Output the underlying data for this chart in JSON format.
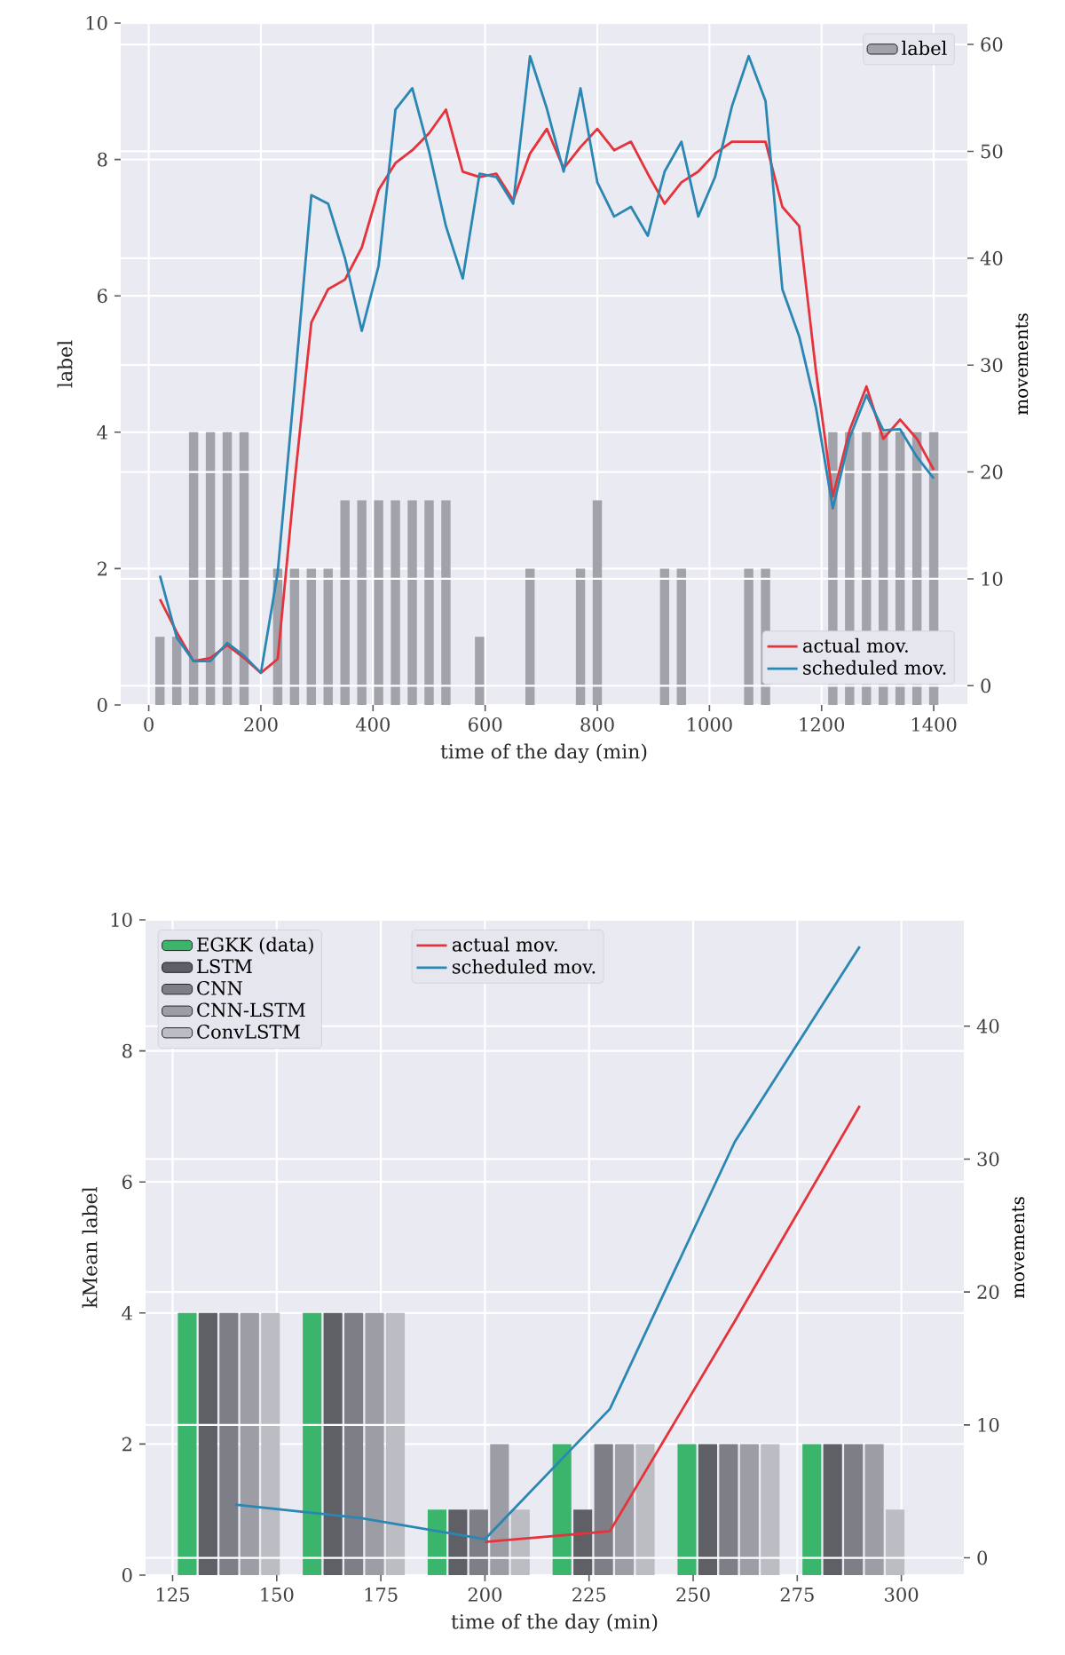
{
  "chart_data": [
    {
      "type": "bar",
      "xlabel": "time of the day (min)",
      "ylabel": "label",
      "y2label": "movements",
      "grid": true,
      "legend": "top right",
      "x": [
        20,
        50,
        80,
        110,
        140,
        170,
        200,
        230,
        260,
        290,
        320,
        350,
        380,
        410,
        440,
        470,
        500,
        530,
        560,
        590,
        620,
        650,
        680,
        710,
        740,
        770,
        800,
        830,
        860,
        890,
        920,
        950,
        980,
        1010,
        1040,
        1070,
        1100,
        1130,
        1160,
        1190,
        1220,
        1250,
        1280,
        1310,
        1340,
        1370,
        1400
      ],
      "xlim": [
        -50,
        1460
      ],
      "xticks": [
        0,
        200,
        400,
        600,
        800,
        1000,
        1200,
        1400
      ],
      "ylim": [
        0,
        10
      ],
      "yticks": [
        0,
        2,
        4,
        6,
        8,
        10
      ],
      "y2lim": [
        -1.8,
        62
      ],
      "y2ticks": [
        0,
        10,
        20,
        30,
        40,
        50,
        60
      ],
      "series": [
        {
          "name": "label",
          "color": "#a2a2ab",
          "values": [
            1,
            1,
            4,
            4,
            4,
            4,
            0,
            2,
            2,
            2,
            2,
            3,
            3,
            3,
            3,
            3,
            3,
            3,
            0,
            1,
            0,
            0,
            2,
            0,
            0,
            2,
            3,
            0,
            0,
            0,
            2,
            2,
            0,
            0,
            0,
            2,
            2,
            0,
            0,
            0,
            4,
            4,
            4,
            4,
            4,
            4,
            4
          ]
        },
        {
          "name": "actual mov.",
          "type": "line",
          "axis": "y2",
          "color": "#e5323b",
          "values": [
            8.1,
            5.0,
            2.3,
            2.6,
            3.8,
            2.6,
            1.2,
            2.5,
            19,
            34,
            37.1,
            38,
            41,
            46.4,
            48.9,
            50.1,
            51.7,
            53.9,
            48.1,
            47.6,
            47.9,
            45.4,
            49.8,
            52.1,
            48.4,
            50.4,
            52.1,
            50.1,
            50.9,
            47.9,
            45.1,
            47.1,
            48.1,
            49.8,
            50.9,
            50.9,
            50.9,
            44.8,
            43.0,
            29.4,
            17.7,
            23.9,
            28.0,
            23.1,
            24.9,
            23.1,
            20.2
          ]
        },
        {
          "name": "scheduled mov.",
          "type": "line",
          "axis": "y2",
          "color": "#2a87b4",
          "values": [
            10.3,
            4.5,
            2.3,
            2.3,
            4.0,
            2.8,
            1.2,
            10.6,
            28,
            45.9,
            45.1,
            40,
            33.2,
            39.3,
            53.9,
            55.9,
            50,
            43,
            38.1,
            47.9,
            47.6,
            45.1,
            58.9,
            54,
            48.1,
            55.9,
            47.1,
            43.9,
            44.8,
            42.1,
            48.1,
            50.9,
            43.9,
            47.6,
            54.2,
            58.9,
            54.7,
            37.1,
            32.7,
            26,
            16.6,
            23.2,
            27.2,
            23.9,
            24.0,
            21.4,
            19.4
          ]
        }
      ]
    },
    {
      "type": "bar",
      "xlabel": "time of the day (min)",
      "ylabel": "kMean label",
      "y2label": "movements",
      "grid": true,
      "legend": "top left",
      "x": [
        140,
        170,
        200,
        230,
        260,
        290
      ],
      "xlim": [
        118.5,
        315
      ],
      "xticks": [
        125,
        150,
        175,
        200,
        225,
        250,
        275,
        300
      ],
      "ylim": [
        0,
        10
      ],
      "yticks": [
        0,
        2,
        4,
        6,
        8,
        10
      ],
      "y2lim": [
        -1.3,
        48
      ],
      "y2ticks": [
        0,
        10,
        20,
        30,
        40
      ],
      "series": [
        {
          "name": "EGKK (data)",
          "color": "#3bb56c",
          "values": [
            4,
            4,
            1,
            2,
            2,
            2
          ]
        },
        {
          "name": "LSTM",
          "color": "#5f5f66",
          "values": [
            4,
            4,
            1,
            1,
            2,
            2
          ]
        },
        {
          "name": "CNN",
          "color": "#7e7e86",
          "values": [
            4,
            4,
            1,
            2,
            2,
            2
          ]
        },
        {
          "name": "CNN-LSTM",
          "color": "#9d9da5",
          "values": [
            4,
            4,
            2,
            2,
            2,
            2
          ]
        },
        {
          "name": "ConvLSTM",
          "color": "#bcbcc3",
          "values": [
            4,
            4,
            1,
            2,
            2,
            1
          ]
        },
        {
          "name": "actual mov.",
          "type": "line",
          "axis": "y2",
          "color": "#e5323b",
          "values": [
            null,
            null,
            1.2,
            2.0,
            17.8,
            34.0
          ]
        },
        {
          "name": "scheduled mov.",
          "type": "line",
          "axis": "y2",
          "color": "#2a87b4",
          "values": [
            4.0,
            3.0,
            1.4,
            11.2,
            31.3,
            46.0
          ]
        }
      ]
    }
  ]
}
